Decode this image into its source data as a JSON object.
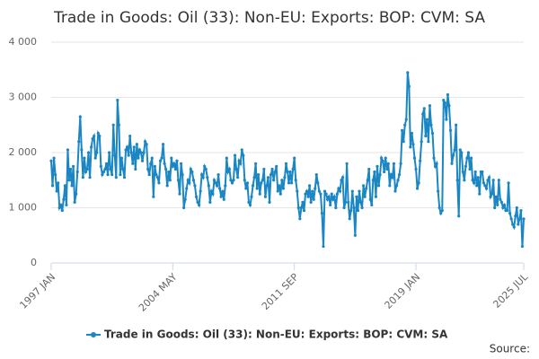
{
  "chart_data": {
    "type": "line",
    "title": "Trade in Goods: Oil (33): Non-EU: Exports: BOP: CVM: SA",
    "source": "Source:",
    "categories": [
      "1997 JAN",
      null,
      null,
      null,
      null,
      null,
      null,
      null,
      null,
      null,
      null,
      null,
      null,
      null,
      null,
      null,
      null,
      null,
      null,
      null,
      null,
      null,
      null,
      null,
      null,
      null,
      null,
      null,
      null,
      null,
      null,
      null,
      null,
      null,
      null,
      null,
      null,
      null,
      null,
      null,
      null,
      null,
      null,
      null,
      null,
      null,
      null,
      null,
      null,
      null,
      null,
      null,
      null,
      null,
      null,
      null,
      null,
      null,
      null,
      null,
      null,
      null,
      null,
      null,
      null,
      null,
      null,
      null,
      null,
      null,
      null,
      null,
      null,
      null,
      null,
      null,
      null,
      null,
      null,
      null,
      null,
      null,
      null,
      null,
      null,
      null,
      null,
      null,
      "2004 MAY",
      null,
      null,
      null,
      null,
      null,
      null,
      null,
      null,
      null,
      null,
      null,
      null,
      null,
      null,
      null,
      null,
      null,
      null,
      null,
      null,
      null,
      null,
      null,
      null,
      null,
      null,
      null,
      null,
      null,
      null,
      null,
      null,
      null,
      null,
      null,
      null,
      null,
      null,
      null,
      null,
      null,
      null,
      null,
      null,
      null,
      null,
      null,
      null,
      null,
      null,
      null,
      null,
      null,
      null,
      null,
      null,
      null,
      null,
      null,
      null,
      null,
      null,
      null,
      null,
      null,
      null,
      null,
      null,
      null,
      null,
      null,
      null,
      null,
      null,
      null,
      null,
      null,
      null,
      null,
      null,
      null,
      null,
      null,
      null,
      null,
      null,
      null,
      "2011 SEP",
      null,
      null,
      null,
      null,
      null,
      null,
      null,
      null,
      null,
      null,
      null,
      null,
      null,
      null,
      null,
      null,
      null,
      null,
      null,
      null,
      null,
      null,
      null,
      null,
      null,
      null,
      null,
      null,
      null,
      null,
      null,
      null,
      null,
      null,
      null,
      null,
      null,
      null,
      null,
      null,
      null,
      null,
      null,
      null,
      null,
      null,
      null,
      null,
      null,
      null,
      null,
      null,
      null,
      null,
      null,
      null,
      null,
      null,
      null,
      null,
      null,
      null,
      null,
      null,
      null,
      null,
      null,
      null,
      null,
      null,
      null,
      null,
      null,
      null,
      null,
      null,
      null,
      null,
      null,
      null,
      null,
      null,
      null,
      null,
      null,
      null,
      null,
      "2019 JAN",
      null,
      null,
      null,
      null,
      null,
      null,
      null,
      null,
      null,
      null,
      null,
      null,
      null,
      null,
      null,
      null,
      null,
      null,
      null,
      null,
      null,
      null,
      null,
      null,
      null,
      null,
      null,
      null,
      null,
      null,
      null,
      null,
      null,
      null,
      null,
      null,
      null,
      null,
      null,
      null,
      null,
      null,
      null,
      null,
      null,
      null,
      null,
      null,
      null,
      null,
      null,
      null,
      null,
      null,
      null,
      null,
      null,
      null,
      null,
      null,
      null,
      null,
      null,
      null,
      null,
      null,
      null,
      null,
      null,
      null,
      null,
      null,
      null,
      null,
      null,
      null,
      null,
      "2025 JUL"
    ],
    "series": [
      {
        "name": "Trade in Goods: Oil (33): Non-EU: Exports: BOP: CVM: SA",
        "color": "#1a86c4",
        "values": [
          1850,
          1400,
          1900,
          1600,
          1300,
          1450,
          1000,
          1050,
          950,
          1150,
          1400,
          1050,
          2050,
          1500,
          1700,
          1400,
          1750,
          1100,
          1250,
          1650,
          2200,
          2650,
          2050,
          1550,
          1900,
          1650,
          1700,
          2000,
          1550,
          2100,
          2250,
          2300,
          1900,
          2000,
          2350,
          2300,
          1750,
          1600,
          1650,
          1700,
          1800,
          1600,
          2000,
          1700,
          1600,
          2500,
          1950,
          1550,
          2950,
          2500,
          1600,
          1900,
          1700,
          1550,
          2050,
          2100,
          1950,
          2300,
          2000,
          1800,
          2100,
          1700,
          2150,
          1900,
          2050,
          2000,
          1850,
          2000,
          2200,
          2150,
          1700,
          1600,
          1800,
          1900,
          1200,
          1750,
          1600,
          1550,
          1450,
          1850,
          1900,
          2150,
          1800,
          1700,
          1400,
          1650,
          1500,
          1900,
          1750,
          1800,
          1700,
          1850,
          1500,
          1250,
          1800,
          1600,
          1000,
          1150,
          1350,
          1500,
          1450,
          1700,
          1650,
          1500,
          1400,
          1200,
          1100,
          1050,
          1300,
          1600,
          1550,
          1750,
          1700,
          1550,
          1400,
          1100,
          1300,
          1250,
          1500,
          1450,
          1400,
          1600,
          1350,
          1200,
          1300,
          1150,
          1400,
          1900,
          1650,
          1700,
          1500,
          1450,
          1500,
          1950,
          1700,
          1550,
          1850,
          1800,
          2050,
          1950,
          1500,
          1350,
          1450,
          1100,
          1050,
          1200,
          1400,
          1550,
          1800,
          1350,
          1600,
          1250,
          1450,
          1500,
          1700,
          1200,
          1400,
          1550,
          1100,
          1600,
          1700,
          1500,
          1650,
          1750,
          1300,
          1400,
          1250,
          1500,
          1350,
          1550,
          1800,
          1650,
          1450,
          1650,
          1450,
          1700,
          1900,
          1500,
          1300,
          1000,
          800,
          1000,
          1100,
          950,
          1250,
          1300,
          1200,
          1400,
          1100,
          1300,
          1150,
          1350,
          1600,
          1450,
          1300,
          1250,
          900,
          300,
          1300,
          1250,
          1150,
          1200,
          1050,
          1250,
          1150,
          1200,
          1000,
          1250,
          1350,
          1300,
          1500,
          1550,
          1000,
          1100,
          1800,
          1100,
          800,
          950,
          1300,
          1000,
          500,
          1200,
          950,
          1300,
          1100,
          1000,
          1400,
          1200,
          1350,
          1500,
          1700,
          1150,
          1050,
          1500,
          1650,
          1200,
          1750,
          1400,
          1600,
          1900,
          1850,
          1650,
          1900,
          1700,
          1800,
          1400,
          1600,
          1550,
          1800,
          1300,
          1400,
          1500,
          1600,
          1800,
          2400,
          2200,
          2500,
          2600,
          3450,
          3200,
          2100,
          2350,
          2150,
          1900,
          1700,
          1350,
          1450,
          1850,
          2200,
          2700,
          2800,
          2300,
          2600,
          2200,
          2850,
          2500,
          2350,
          1900,
          1750,
          1800,
          1300,
          1000,
          900,
          950,
          2950,
          2900,
          2600,
          3050,
          2850,
          2400,
          1800,
          1950,
          2050,
          2500,
          1500,
          850,
          2050,
          2000,
          1650,
          1500,
          1750,
          1900,
          2000,
          1700,
          1900,
          1500,
          1450,
          1650,
          1400,
          1550,
          1250,
          1650,
          1650,
          1450,
          1400,
          1350,
          1500,
          1550,
          1200,
          1250,
          1500,
          1000,
          1200,
          1050,
          1500,
          1150,
          1100,
          1000,
          1050,
          950,
          950,
          1450,
          900,
          800,
          700,
          650,
          850,
          1000,
          700,
          800,
          950,
          300,
          800
        ]
      }
    ],
    "ylim": [
      0,
      4000
    ],
    "yticks": [
      0,
      {
        "value": 1000,
        "label": "1 000"
      },
      {
        "value": 2000,
        "label": "2 000"
      },
      {
        "value": 3000,
        "label": "3 000"
      },
      {
        "value": 4000,
        "label": "4 000"
      }
    ],
    "grid": true,
    "legend": "bottom"
  }
}
